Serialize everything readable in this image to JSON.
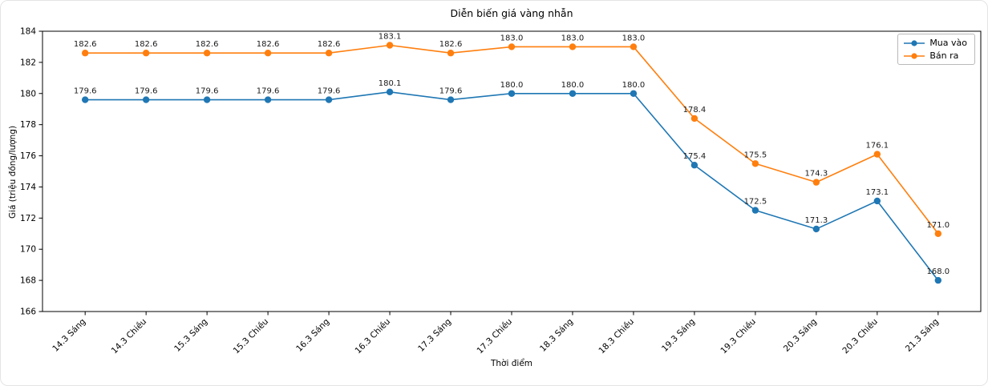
{
  "figure": {
    "title": "Diễn biến giá vàng nhẫn",
    "xlabel": "Thời điểm",
    "ylabel": "Giá (triệu đồng/lượng)"
  },
  "legend": {
    "items": [
      {
        "label": "Mua vào",
        "color": "#1f77b4"
      },
      {
        "label": "Bán ra",
        "color": "#ff7f0e"
      }
    ]
  },
  "chart_data": {
    "type": "line",
    "title": "Diễn biến giá vàng nhẫn",
    "xlabel": "Thời điểm",
    "ylabel": "Giá (triệu đồng/lượng)",
    "categories": [
      "14.3 Sáng",
      "14.3 Chiều",
      "15.3 Sáng",
      "15.3 Chiều",
      "16.3 Sáng",
      "16.3 Chiều",
      "17.3 Sáng",
      "17.3 Chiều",
      "18.3 Sáng",
      "18.3 Chiều",
      "19.3 Sáng",
      "19.3 Chiều",
      "20.3 Sáng",
      "20.3 Chiều",
      "21.3 Sáng"
    ],
    "series": [
      {
        "name": "Mua vào",
        "color": "#1f77b4",
        "values": [
          179.6,
          179.6,
          179.6,
          179.6,
          179.6,
          180.1,
          179.6,
          180.0,
          180.0,
          180.0,
          175.4,
          172.5,
          171.3,
          173.1,
          168.0
        ]
      },
      {
        "name": "Bán ra",
        "color": "#ff7f0e",
        "values": [
          182.6,
          182.6,
          182.6,
          182.6,
          182.6,
          183.1,
          182.6,
          183.0,
          183.0,
          183.0,
          178.4,
          175.5,
          174.3,
          176.1,
          171.0
        ]
      }
    ],
    "ylim": [
      166,
      184
    ],
    "yticks": [
      166,
      168,
      170,
      172,
      174,
      176,
      178,
      180,
      182,
      184
    ],
    "grid": false,
    "legend_position": "top-right",
    "marker": "circle",
    "data_labels": true,
    "data_label_format": ".1f",
    "axis_color": "#000000",
    "label_color": "#1a1a1a"
  }
}
